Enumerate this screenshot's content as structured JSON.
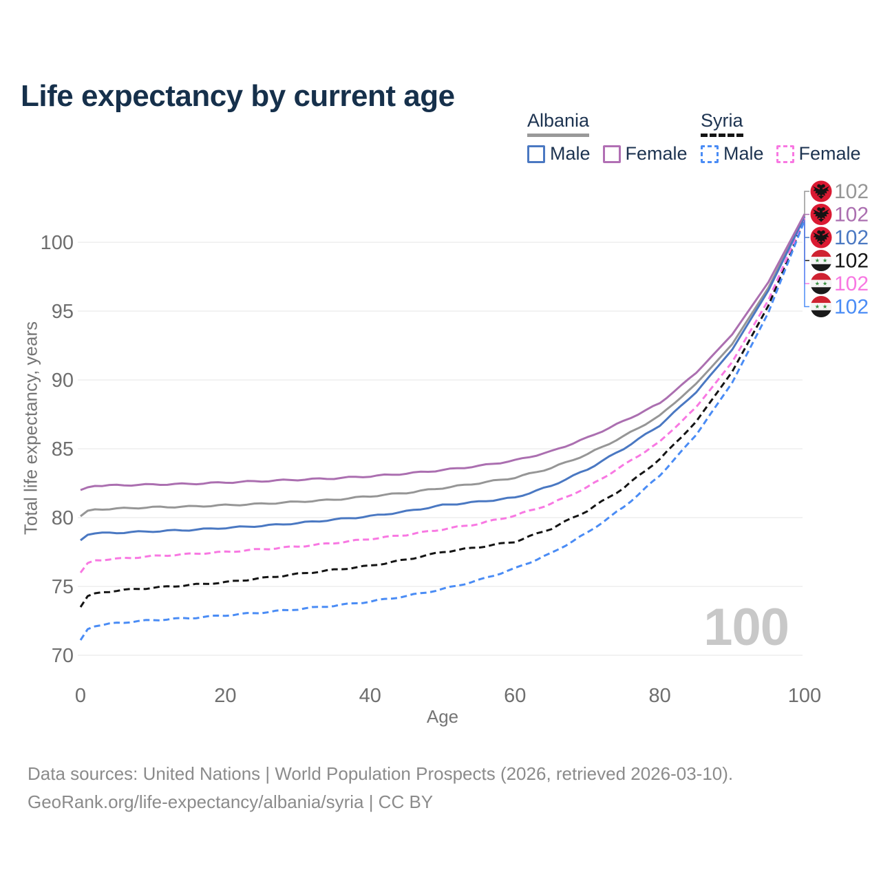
{
  "title": "Life expectancy by current age",
  "legend": {
    "albania": {
      "label": "Albania",
      "underline_color": "#999999",
      "items": [
        {
          "label": "Male",
          "color": "#4a78c2",
          "dashed": false
        },
        {
          "label": "Female",
          "color": "#b16fb4",
          "dashed": false
        }
      ]
    },
    "syria": {
      "label": "Syria",
      "underline_color": "#141414",
      "items": [
        {
          "label": "Male",
          "color": "#4a8cf5",
          "dashed": true
        },
        {
          "label": "Female",
          "color": "#f878e2",
          "dashed": true
        }
      ]
    }
  },
  "watermark": "100",
  "footer": {
    "line1": "Data sources: United Nations | World Population Prospects (2026, retrieved 2026-03-10).",
    "line2": "GeoRank.org/life-expectancy/albania/syria | CC BY"
  },
  "chart_data": {
    "type": "line",
    "title": "Life expectancy by current age",
    "xlabel": "Age",
    "ylabel": "Total life expectancy, years",
    "xlim": [
      0,
      100
    ],
    "ylim": [
      70,
      102.5
    ],
    "grid": true,
    "xticks": [
      0,
      20,
      40,
      60,
      80,
      100
    ],
    "yticks": [
      70,
      75,
      80,
      85,
      90,
      95,
      100
    ],
    "x": [
      0,
      1,
      2,
      5,
      10,
      15,
      20,
      25,
      30,
      35,
      40,
      45,
      50,
      55,
      60,
      65,
      70,
      75,
      80,
      85,
      90,
      95,
      100
    ],
    "series": [
      {
        "id": "albania-both",
        "name": "Albania",
        "sex": "both",
        "flag": "albania",
        "color": "#969696",
        "dashed": false,
        "end_label": "102",
        "values": [
          80.1,
          80.5,
          80.6,
          80.65,
          80.75,
          80.8,
          80.9,
          81.0,
          81.15,
          81.3,
          81.55,
          81.8,
          82.15,
          82.5,
          82.9,
          83.6,
          84.6,
          85.9,
          87.4,
          89.7,
          92.6,
          96.7,
          101.95
        ]
      },
      {
        "id": "albania-female",
        "name": "Albania Female",
        "sex": "female",
        "flag": "albania",
        "color": "#ab6fb0",
        "dashed": false,
        "end_label": "102",
        "values": [
          82.0,
          82.2,
          82.3,
          82.35,
          82.4,
          82.45,
          82.55,
          82.65,
          82.75,
          82.85,
          83.0,
          83.2,
          83.45,
          83.75,
          84.15,
          84.8,
          85.8,
          87.0,
          88.3,
          90.5,
          93.3,
          97.1,
          102.05
        ]
      },
      {
        "id": "albania-male",
        "name": "Albania Male",
        "sex": "male",
        "flag": "albania",
        "color": "#4a78c2",
        "dashed": false,
        "end_label": "102",
        "values": [
          78.35,
          78.75,
          78.85,
          78.9,
          79.0,
          79.1,
          79.25,
          79.4,
          79.6,
          79.85,
          80.1,
          80.45,
          80.9,
          81.15,
          81.45,
          82.3,
          83.5,
          85.0,
          86.7,
          89.1,
          92.2,
          96.5,
          101.85
        ]
      },
      {
        "id": "syria-both",
        "name": "Syria",
        "sex": "both",
        "flag": "syria",
        "color": "#141414",
        "dashed": true,
        "end_label": "102",
        "values": [
          73.5,
          74.3,
          74.5,
          74.7,
          74.9,
          75.1,
          75.3,
          75.6,
          75.9,
          76.2,
          76.5,
          76.95,
          77.5,
          77.85,
          78.25,
          79.2,
          80.5,
          82.15,
          84.25,
          86.95,
          90.6,
          95.4,
          101.7
        ]
      },
      {
        "id": "syria-female",
        "name": "Syria Female",
        "sex": "female",
        "flag": "syria",
        "color": "#f878e2",
        "dashed": true,
        "end_label": "102",
        "values": [
          76.0,
          76.7,
          76.9,
          77.0,
          77.2,
          77.35,
          77.5,
          77.7,
          77.9,
          78.15,
          78.45,
          78.75,
          79.15,
          79.55,
          80.15,
          81.0,
          82.2,
          83.8,
          85.5,
          88.0,
          91.3,
          95.8,
          101.78
        ]
      },
      {
        "id": "syria-male",
        "name": "Syria Male",
        "sex": "male",
        "flag": "syria",
        "color": "#4a8cf5",
        "dashed": true,
        "end_label": "102",
        "values": [
          71.1,
          71.9,
          72.1,
          72.35,
          72.55,
          72.7,
          72.9,
          73.1,
          73.35,
          73.6,
          73.9,
          74.3,
          74.8,
          75.45,
          76.3,
          77.4,
          78.9,
          80.75,
          83.05,
          86.0,
          89.8,
          94.9,
          101.6
        ]
      }
    ],
    "legend_position": "top-right"
  }
}
